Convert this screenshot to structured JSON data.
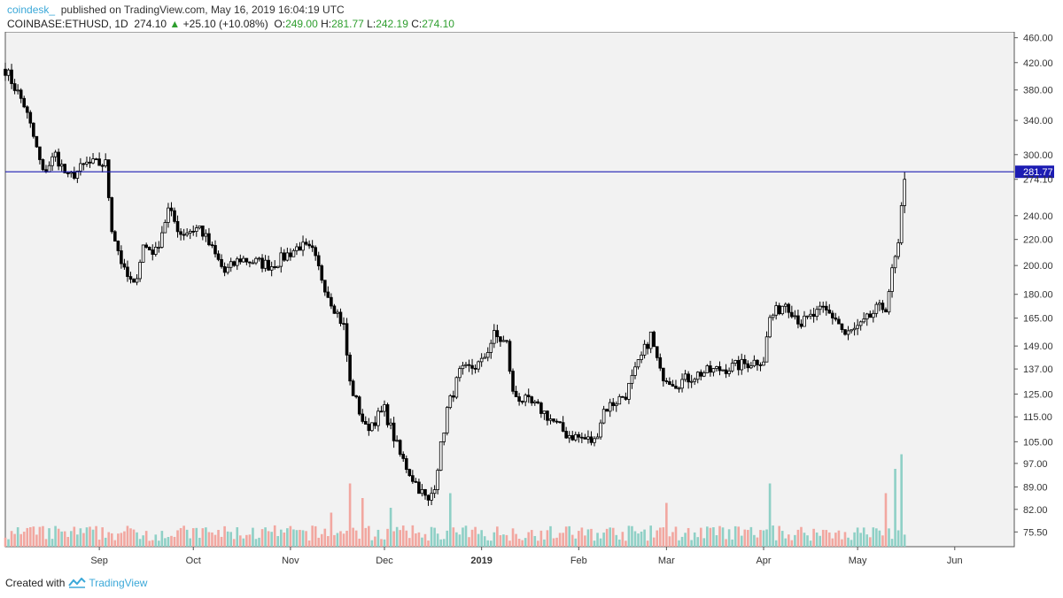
{
  "header": {
    "author": "coindesk_",
    "published": "published on TradingView.com, May 16, 2019 16:04:19 UTC",
    "symbol": "COINBASE:ETHUSD, 1D",
    "last": "274.10",
    "arrow": "▲",
    "change": "+25.10 (+10.08%)",
    "o_label": "O:",
    "o": "249.00",
    "h_label": "H:",
    "h": "281.77",
    "l_label": "L:",
    "l": "242.19",
    "c_label": "C:",
    "c": "274.10"
  },
  "footer": {
    "created_with": "Created with",
    "brand": "TradingView"
  },
  "colors": {
    "up_volume": "#8fd0c6",
    "down_volume": "#f2a7a0",
    "hline": "#1c1cb3",
    "plot_bg": "#f2f2f2"
  },
  "chart_data": {
    "type": "candlestick",
    "y_scale": "log",
    "y_tick_labels": [
      "460.00",
      "420.00",
      "380.00",
      "340.00",
      "300.00",
      "274.10",
      "240.00",
      "220.00",
      "200.00",
      "180.00",
      "165.00",
      "149.00",
      "137.00",
      "125.00",
      "115.00",
      "105.00",
      "97.00",
      "89.00",
      "82.00",
      "75.50"
    ],
    "y_ticks": [
      460,
      420,
      380,
      340,
      300,
      274.1,
      240,
      220,
      200,
      180,
      165,
      149,
      137,
      125,
      115,
      105,
      97,
      89,
      82,
      75.5
    ],
    "ylim": [
      72,
      470
    ],
    "x_tick_labels": [
      "Sep",
      "Oct",
      "Nov",
      "Dec",
      "2019",
      "Feb",
      "Mar",
      "Apr",
      "May",
      "Jun"
    ],
    "x_tick_dates": [
      "2018-09-01",
      "2018-10-01",
      "2018-11-01",
      "2018-12-01",
      "2019-01-01",
      "2019-02-01",
      "2019-03-01",
      "2019-04-01",
      "2019-05-01",
      "2019-06-01"
    ],
    "xlim": [
      "2018-08-02",
      "2019-06-20"
    ],
    "hline": {
      "value": 281.77,
      "label": "281.77"
    },
    "last_label": "274.10",
    "close_anchors": [
      [
        "2018-08-02",
        410
      ],
      [
        "2018-08-08",
        360
      ],
      [
        "2018-08-11",
        320
      ],
      [
        "2018-08-14",
        280
      ],
      [
        "2018-08-18",
        300
      ],
      [
        "2018-08-22",
        275
      ],
      [
        "2018-08-28",
        290
      ],
      [
        "2018-09-03",
        290
      ],
      [
        "2018-09-05",
        230
      ],
      [
        "2018-09-09",
        195
      ],
      [
        "2018-09-12",
        185
      ],
      [
        "2018-09-15",
        215
      ],
      [
        "2018-09-19",
        210
      ],
      [
        "2018-09-23",
        245
      ],
      [
        "2018-09-27",
        225
      ],
      [
        "2018-10-03",
        230
      ],
      [
        "2018-10-11",
        195
      ],
      [
        "2018-10-16",
        205
      ],
      [
        "2018-10-26",
        200
      ],
      [
        "2018-11-04",
        215
      ],
      [
        "2018-11-08",
        210
      ],
      [
        "2018-11-13",
        180
      ],
      [
        "2018-11-18",
        160
      ],
      [
        "2018-11-20",
        130
      ],
      [
        "2018-11-25",
        110
      ],
      [
        "2018-12-01",
        118
      ],
      [
        "2018-12-06",
        100
      ],
      [
        "2018-12-10",
        92
      ],
      [
        "2018-12-15",
        84
      ],
      [
        "2018-12-17",
        90
      ],
      [
        "2018-12-21",
        118
      ],
      [
        "2018-12-25",
        135
      ],
      [
        "2019-01-01",
        140
      ],
      [
        "2019-01-05",
        155
      ],
      [
        "2019-01-09",
        150
      ],
      [
        "2019-01-11",
        125
      ],
      [
        "2019-01-20",
        118
      ],
      [
        "2019-01-28",
        108
      ],
      [
        "2019-02-06",
        105
      ],
      [
        "2019-02-09",
        118
      ],
      [
        "2019-02-16",
        125
      ],
      [
        "2019-02-24",
        155
      ],
      [
        "2019-02-27",
        135
      ],
      [
        "2019-03-04",
        130
      ],
      [
        "2019-03-12",
        135
      ],
      [
        "2019-03-22",
        138
      ],
      [
        "2019-04-01",
        142
      ],
      [
        "2019-04-03",
        165
      ],
      [
        "2019-04-08",
        175
      ],
      [
        "2019-04-13",
        162
      ],
      [
        "2019-04-20",
        170
      ],
      [
        "2019-04-24",
        165
      ],
      [
        "2019-04-27",
        155
      ],
      [
        "2019-05-02",
        160
      ],
      [
        "2019-05-07",
        170
      ],
      [
        "2019-05-10",
        172
      ],
      [
        "2019-05-12",
        195
      ],
      [
        "2019-05-14",
        215
      ],
      [
        "2019-05-15",
        249
      ]
    ],
    "last_candle": {
      "date": "2019-05-16",
      "open": 249.0,
      "high": 281.77,
      "low": 242.19,
      "close": 274.1
    },
    "volume_spikes": [
      [
        "2018-11-14",
        0.35
      ],
      [
        "2018-11-20",
        0.65
      ],
      [
        "2018-11-24",
        0.5
      ],
      [
        "2018-12-03",
        0.4
      ],
      [
        "2018-12-22",
        0.55
      ],
      [
        "2019-03-01",
        0.45
      ],
      [
        "2019-04-03",
        0.65
      ],
      [
        "2019-05-10",
        0.55
      ],
      [
        "2019-05-13",
        0.8
      ],
      [
        "2019-05-15",
        0.95
      ]
    ]
  }
}
